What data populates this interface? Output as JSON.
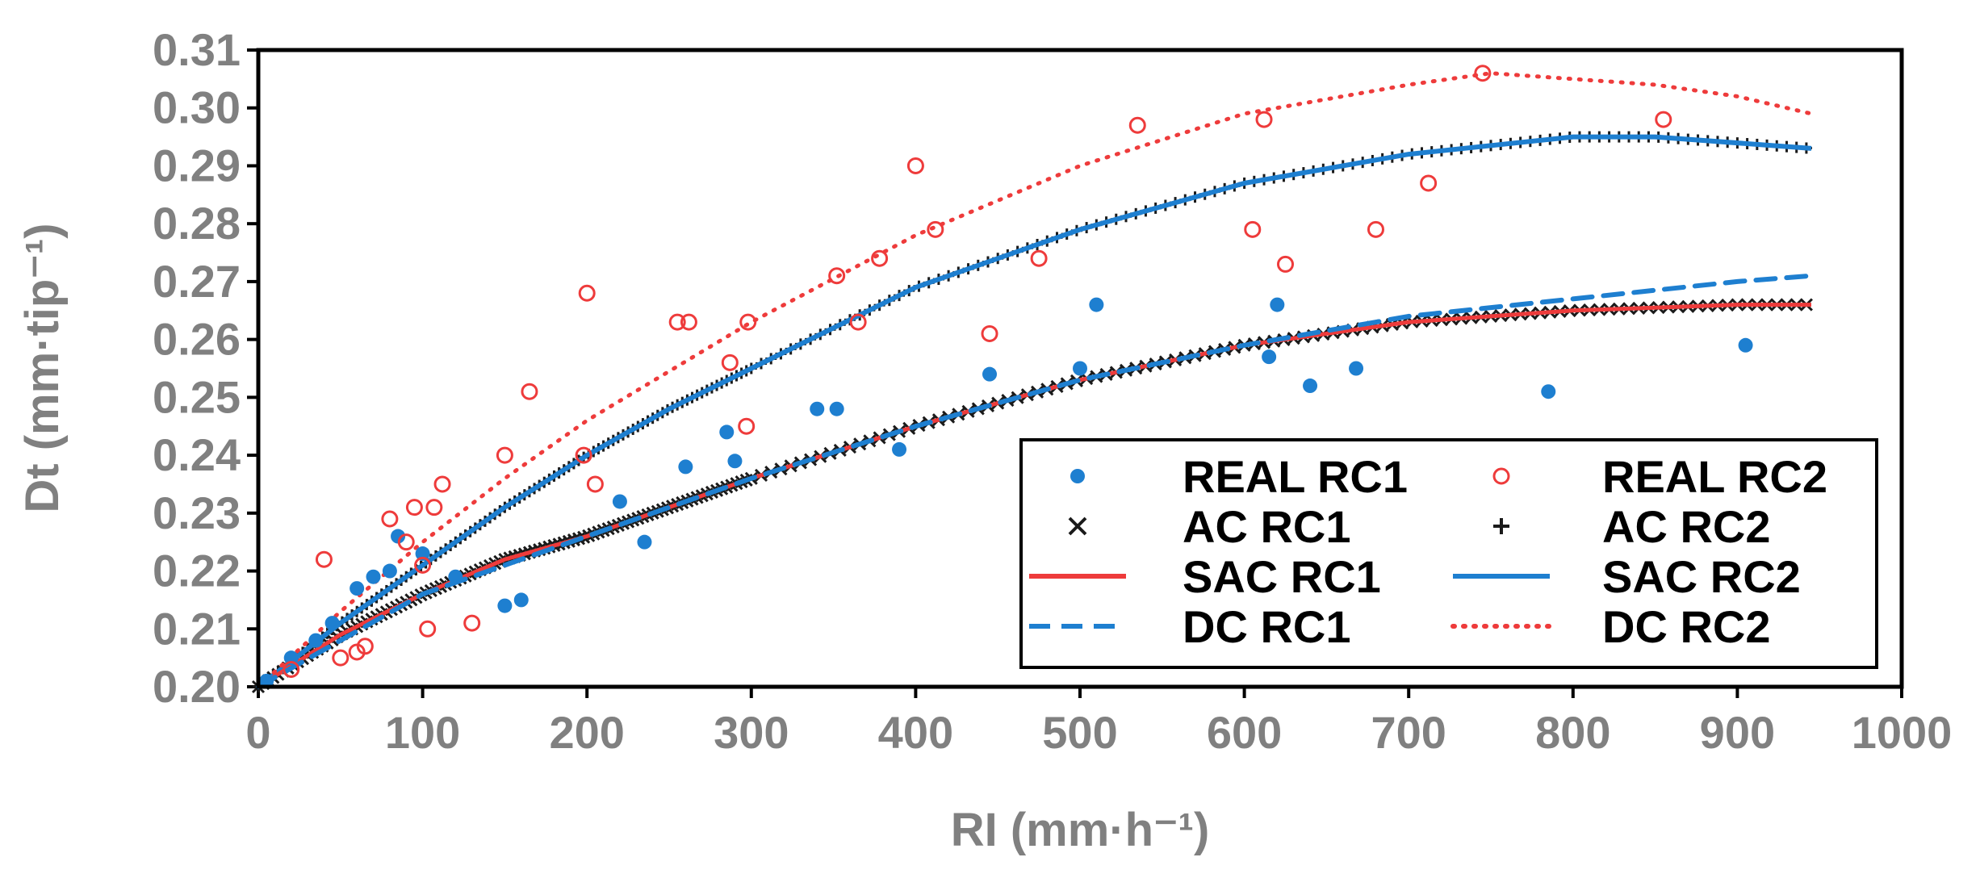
{
  "chart_data": {
    "type": "scatter",
    "title": "",
    "xlabel": "RI (mm·h⁻¹)",
    "ylabel": "Dt (mm·tip⁻¹)",
    "xlim": [
      0,
      1000
    ],
    "ylim": [
      0.2,
      0.31
    ],
    "x_ticks": [
      0,
      100,
      200,
      300,
      400,
      500,
      600,
      700,
      800,
      900,
      1000
    ],
    "y_ticks": [
      0.2,
      0.21,
      0.22,
      0.23,
      0.24,
      0.25,
      0.26,
      0.27,
      0.28,
      0.29,
      0.3,
      0.31
    ],
    "x_tick_labels": [
      "0",
      "100",
      "200",
      "300",
      "400",
      "500",
      "600",
      "700",
      "800",
      "900",
      "1000"
    ],
    "y_tick_labels": [
      "0.20",
      "0.21",
      "0.22",
      "0.23",
      "0.24",
      "0.25",
      "0.26",
      "0.27",
      "0.28",
      "0.29",
      "0.30",
      "0.31"
    ],
    "grid": false,
    "legend_position": "bottom-right",
    "colors": {
      "blue": "#1e7fd0",
      "red": "#ee3b3b",
      "black": "#1a1a1a",
      "axis": "#000000",
      "tick_text": "#808080"
    },
    "series": [
      {
        "name": "REAL RC1",
        "style": "dot",
        "color": "#1e7fd0",
        "points": [
          [
            5,
            0.201
          ],
          [
            20,
            0.205
          ],
          [
            35,
            0.208
          ],
          [
            45,
            0.211
          ],
          [
            60,
            0.217
          ],
          [
            70,
            0.219
          ],
          [
            80,
            0.22
          ],
          [
            85,
            0.226
          ],
          [
            100,
            0.223
          ],
          [
            120,
            0.219
          ],
          [
            150,
            0.214
          ],
          [
            160,
            0.215
          ],
          [
            220,
            0.232
          ],
          [
            235,
            0.225
          ],
          [
            260,
            0.238
          ],
          [
            285,
            0.244
          ],
          [
            290,
            0.239
          ],
          [
            340,
            0.248
          ],
          [
            352,
            0.248
          ],
          [
            390,
            0.241
          ],
          [
            445,
            0.254
          ],
          [
            500,
            0.255
          ],
          [
            510,
            0.266
          ],
          [
            615,
            0.257
          ],
          [
            620,
            0.266
          ],
          [
            640,
            0.252
          ],
          [
            668,
            0.255
          ],
          [
            785,
            0.251
          ],
          [
            905,
            0.259
          ]
        ]
      },
      {
        "name": "REAL RC2",
        "style": "circle",
        "color": "#ee3b3b",
        "points": [
          [
            20,
            0.203
          ],
          [
            40,
            0.222
          ],
          [
            50,
            0.205
          ],
          [
            60,
            0.206
          ],
          [
            65,
            0.207
          ],
          [
            80,
            0.229
          ],
          [
            90,
            0.225
          ],
          [
            95,
            0.231
          ],
          [
            100,
            0.221
          ],
          [
            103,
            0.21
          ],
          [
            107,
            0.231
          ],
          [
            112,
            0.235
          ],
          [
            130,
            0.211
          ],
          [
            150,
            0.24
          ],
          [
            165,
            0.251
          ],
          [
            198,
            0.24
          ],
          [
            200,
            0.268
          ],
          [
            205,
            0.235
          ],
          [
            255,
            0.263
          ],
          [
            262,
            0.263
          ],
          [
            287,
            0.256
          ],
          [
            297,
            0.245
          ],
          [
            298,
            0.263
          ],
          [
            352,
            0.271
          ],
          [
            365,
            0.263
          ],
          [
            378,
            0.274
          ],
          [
            400,
            0.29
          ],
          [
            412,
            0.279
          ],
          [
            445,
            0.261
          ],
          [
            475,
            0.274
          ],
          [
            535,
            0.297
          ],
          [
            605,
            0.279
          ],
          [
            612,
            0.298
          ],
          [
            625,
            0.273
          ],
          [
            680,
            0.279
          ],
          [
            712,
            0.287
          ],
          [
            745,
            0.306
          ],
          [
            855,
            0.298
          ]
        ]
      },
      {
        "name": "AC RC1",
        "style": "x",
        "color": "#1a1a1a",
        "points": []
      },
      {
        "name": "AC RC2",
        "style": "plus",
        "color": "#1a1a1a",
        "points": []
      },
      {
        "name": "SAC RC1",
        "style": "solid",
        "color": "#ee3b3b",
        "points": [
          [
            0,
            0.2
          ],
          [
            50,
            0.209
          ],
          [
            100,
            0.216
          ],
          [
            150,
            0.222
          ],
          [
            200,
            0.226
          ],
          [
            250,
            0.231
          ],
          [
            300,
            0.236
          ],
          [
            400,
            0.245
          ],
          [
            500,
            0.253
          ],
          [
            600,
            0.259
          ],
          [
            700,
            0.263
          ],
          [
            800,
            0.265
          ],
          [
            900,
            0.266
          ],
          [
            945,
            0.266
          ]
        ]
      },
      {
        "name": "SAC RC2",
        "style": "solid",
        "color": "#1e7fd0",
        "points": [
          [
            0,
            0.2
          ],
          [
            50,
            0.211
          ],
          [
            100,
            0.221
          ],
          [
            150,
            0.231
          ],
          [
            200,
            0.24
          ],
          [
            250,
            0.248
          ],
          [
            300,
            0.255
          ],
          [
            350,
            0.262
          ],
          [
            400,
            0.269
          ],
          [
            500,
            0.279
          ],
          [
            600,
            0.287
          ],
          [
            700,
            0.292
          ],
          [
            800,
            0.295
          ],
          [
            850,
            0.295
          ],
          [
            945,
            0.293
          ]
        ]
      },
      {
        "name": "DC RC1",
        "style": "dashed",
        "color": "#1e7fd0",
        "points": [
          [
            0,
            0.2
          ],
          [
            100,
            0.216
          ],
          [
            200,
            0.226
          ],
          [
            300,
            0.236
          ],
          [
            400,
            0.245
          ],
          [
            500,
            0.253
          ],
          [
            600,
            0.259
          ],
          [
            700,
            0.264
          ],
          [
            800,
            0.267
          ],
          [
            900,
            0.27
          ],
          [
            945,
            0.271
          ]
        ]
      },
      {
        "name": "DC RC2",
        "style": "dotted",
        "color": "#ee3b3b",
        "points": [
          [
            0,
            0.2
          ],
          [
            50,
            0.213
          ],
          [
            100,
            0.225
          ],
          [
            150,
            0.236
          ],
          [
            200,
            0.246
          ],
          [
            300,
            0.263
          ],
          [
            400,
            0.278
          ],
          [
            500,
            0.29
          ],
          [
            600,
            0.299
          ],
          [
            700,
            0.304
          ],
          [
            750,
            0.306
          ],
          [
            800,
            0.305
          ],
          [
            850,
            0.304
          ],
          [
            900,
            0.302
          ],
          [
            945,
            0.299
          ]
        ]
      }
    ],
    "legend": [
      {
        "label": "REAL RC1",
        "symbol": "dot",
        "color": "#1e7fd0"
      },
      {
        "label": "REAL RC2",
        "symbol": "circle",
        "color": "#ee3b3b"
      },
      {
        "label": "AC RC1",
        "symbol": "x",
        "color": "#1a1a1a"
      },
      {
        "label": "AC RC2",
        "symbol": "plus",
        "color": "#1a1a1a"
      },
      {
        "label": "SAC RC1",
        "symbol": "solid",
        "color": "#ee3b3b"
      },
      {
        "label": "SAC RC2",
        "symbol": "solid",
        "color": "#1e7fd0"
      },
      {
        "label": "DC RC1",
        "symbol": "dashed",
        "color": "#1e7fd0"
      },
      {
        "label": "DC RC2",
        "symbol": "dotted",
        "color": "#ee3b3b"
      }
    ]
  }
}
